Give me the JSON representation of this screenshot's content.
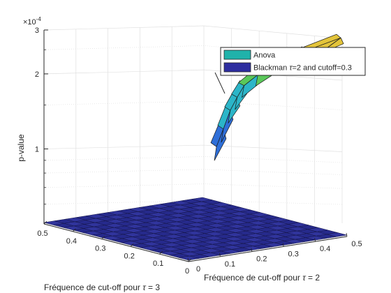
{
  "chart_data": {
    "type": "surface",
    "exponent_label": "×10",
    "exponent_power": "-4",
    "zlabel": "p-value",
    "xlabel_prefix": "Fréquence de cut-off pour ",
    "xlabel_symbol": "τ",
    "xlabel_suffix": " = 2",
    "ylabel_prefix": "Fréquence de cut-off pour ",
    "ylabel_symbol": "τ",
    "ylabel_suffix": " = 3",
    "z_ticks": [
      "1",
      "2",
      "3"
    ],
    "x_ticks": [
      "0",
      "0.1",
      "0.2",
      "0.3",
      "0.4",
      "0.5"
    ],
    "y_ticks": [
      "0",
      "0.1",
      "0.2",
      "0.3",
      "0.4",
      "0.5"
    ],
    "xlim": [
      0,
      0.5
    ],
    "ylim": [
      0,
      0.5
    ],
    "zscale": "log",
    "zlim": [
      0.5,
      3.0
    ],
    "z_unit_multiplier": 0.0001,
    "legend_placement": "top-right",
    "series": [
      {
        "name": "Anova",
        "color": "#20b2aa",
        "description": "irregular raised surface spanning about 1.2e-4 to 3e-4",
        "profile": [
          {
            "y": 0.08,
            "z": 1.15
          },
          {
            "y": 0.1,
            "z": 1.35
          },
          {
            "y": 0.12,
            "z": 1.6
          },
          {
            "y": 0.14,
            "z": 1.8
          },
          {
            "y": 0.16,
            "z": 2.0
          },
          {
            "y": 0.2,
            "z": 2.2
          },
          {
            "y": 0.26,
            "z": 2.45
          },
          {
            "y": 0.34,
            "z": 2.7
          },
          {
            "y": 0.44,
            "z": 3.0
          }
        ]
      },
      {
        "name": "Blackman",
        "name_symbol": "τ",
        "name_suffix": "=2 and cutoff=0.3",
        "color": "#2d2d9f",
        "description": "flat surface at the base of the z axis"
      }
    ],
    "grid": true
  },
  "colors": {
    "surface_low": "#2f6fd8",
    "surface_mid": "#2bb5c8",
    "surface_high_a": "#5ac85a",
    "surface_high_b": "#e3c43a",
    "floor": "#262a8c",
    "floor_line": "#141447",
    "grid": "#e0e0e0",
    "axis": "#262626"
  }
}
